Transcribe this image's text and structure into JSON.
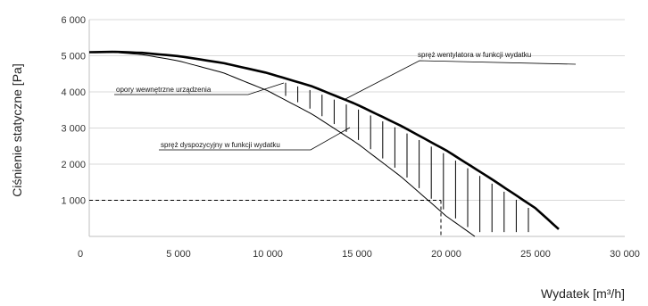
{
  "chart_data": {
    "type": "line",
    "xlabel": "Wydatek [m³/h]",
    "ylabel": "Ciśnienie statyczne [Pa]",
    "xlim": [
      0,
      30000
    ],
    "ylim": [
      0,
      6000
    ],
    "x_ticks": [
      0,
      5000,
      10000,
      15000,
      20000,
      25000,
      30000
    ],
    "x_tick_labels": [
      "0",
      "5 000",
      "10 000",
      "15 000",
      "20 000",
      "25 000",
      "30 000"
    ],
    "y_ticks": [
      1000,
      2000,
      3000,
      4000,
      5000,
      6000
    ],
    "y_tick_labels": [
      "1 000",
      "2 000",
      "3 000",
      "4 000",
      "5 000",
      "6 000"
    ],
    "grid": "horizontal",
    "series": [
      {
        "name": "spręż wentylatora w funkcji wydatku",
        "color": "#000000",
        "x": [
          0,
          1500,
          3000,
          5000,
          7500,
          10000,
          12500,
          15000,
          17500,
          20000,
          22500,
          25000,
          26300
        ],
        "y": [
          5100,
          5110,
          5080,
          4990,
          4800,
          4520,
          4150,
          3650,
          3050,
          2380,
          1600,
          780,
          200
        ]
      },
      {
        "name": "spręż dyspozycyjny w funkcji wydatku",
        "color": "#000000",
        "x": [
          0,
          1500,
          3000,
          5000,
          7500,
          10000,
          12500,
          15000,
          17500,
          20000,
          21600
        ],
        "y": [
          5100,
          5090,
          5030,
          4860,
          4530,
          4030,
          3380,
          2580,
          1640,
          560,
          0
        ]
      }
    ],
    "hatched_region": {
      "label": "opory wewnętrzne urządzenia",
      "x_from": 11000,
      "x_to": 24600,
      "line_count": 21
    },
    "operating_point": {
      "x": 19700,
      "y": 1000
    },
    "annotations": [
      {
        "text": "spręż wentylatora w funkcji wydatku"
      },
      {
        "text": "opory wewnętrzne urządzenia"
      },
      {
        "text": "spręż dyspozycyjny w funkcji wydatku"
      }
    ]
  }
}
